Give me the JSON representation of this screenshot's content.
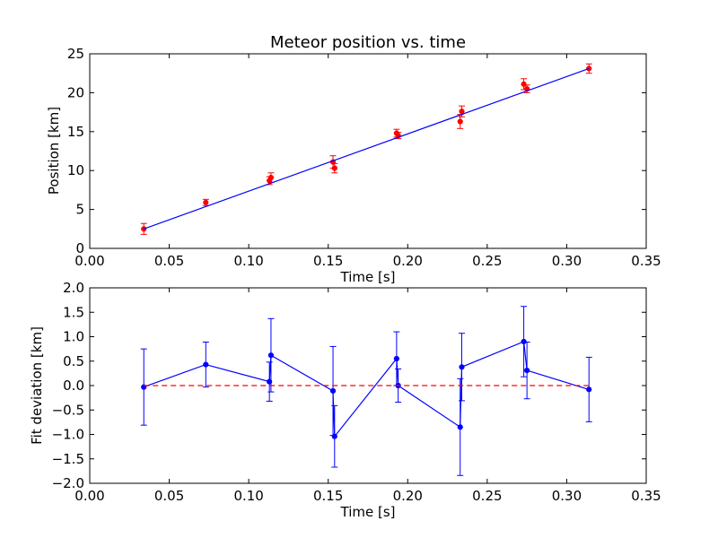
{
  "chart_data": [
    {
      "type": "scatter",
      "title": "Meteor position vs. time",
      "xlabel": "Time [s]",
      "ylabel": "Position [km]",
      "xlim": [
        0.0,
        0.35
      ],
      "ylim": [
        0,
        25
      ],
      "x_ticks": [
        "0.00",
        "0.05",
        "0.10",
        "0.15",
        "0.20",
        "0.25",
        "0.30",
        "0.35"
      ],
      "y_ticks": [
        "0",
        "5",
        "10",
        "15",
        "20",
        "25"
      ],
      "grid": false,
      "series": [
        {
          "kind": "errorbar-points",
          "color": "#ff0000",
          "points": [
            {
              "x": 0.034,
              "y": 2.5,
              "err": 0.7
            },
            {
              "x": 0.073,
              "y": 5.9,
              "err": 0.4
            },
            {
              "x": 0.113,
              "y": 8.7,
              "err": 0.5
            },
            {
              "x": 0.114,
              "y": 9.1,
              "err": 0.6
            },
            {
              "x": 0.153,
              "y": 11.1,
              "err": 0.8
            },
            {
              "x": 0.154,
              "y": 10.3,
              "err": 0.6
            },
            {
              "x": 0.193,
              "y": 14.8,
              "err": 0.5
            },
            {
              "x": 0.194,
              "y": 14.5,
              "err": 0.4
            },
            {
              "x": 0.233,
              "y": 16.3,
              "err": 0.9
            },
            {
              "x": 0.234,
              "y": 17.6,
              "err": 0.7
            },
            {
              "x": 0.273,
              "y": 21.1,
              "err": 0.7
            },
            {
              "x": 0.275,
              "y": 20.5,
              "err": 0.5
            },
            {
              "x": 0.314,
              "y": 23.1,
              "err": 0.6
            }
          ]
        },
        {
          "kind": "fit-line",
          "color": "#0000ff",
          "x": [
            0.034,
            0.314
          ],
          "y": [
            2.5,
            23.1
          ]
        }
      ]
    },
    {
      "type": "line",
      "title": "",
      "xlabel": "Time [s]",
      "ylabel": "Fit deviation [km]",
      "xlim": [
        0.0,
        0.35
      ],
      "ylim": [
        -2.0,
        2.0
      ],
      "x_ticks": [
        "0.00",
        "0.05",
        "0.10",
        "0.15",
        "0.20",
        "0.25",
        "0.30",
        "0.35"
      ],
      "y_ticks": [
        "−2.0",
        "−1.5",
        "−1.0",
        "−0.5",
        "0.0",
        "0.5",
        "1.0",
        "1.5",
        "2.0"
      ],
      "grid": false,
      "series": [
        {
          "kind": "errorbar-line",
          "color": "#0000ff",
          "points": [
            {
              "x": 0.034,
              "y": -0.03,
              "err": 0.78
            },
            {
              "x": 0.073,
              "y": 0.43,
              "err": 0.46
            },
            {
              "x": 0.113,
              "y": 0.08,
              "err": 0.4
            },
            {
              "x": 0.114,
              "y": 0.62,
              "err": 0.75
            },
            {
              "x": 0.153,
              "y": -0.11,
              "err": 0.91
            },
            {
              "x": 0.154,
              "y": -1.04,
              "err": 0.63
            },
            {
              "x": 0.193,
              "y": 0.55,
              "err": 0.55
            },
            {
              "x": 0.194,
              "y": 0.0,
              "err": 0.34
            },
            {
              "x": 0.233,
              "y": -0.85,
              "err": 0.99
            },
            {
              "x": 0.234,
              "y": 0.38,
              "err": 0.69
            },
            {
              "x": 0.273,
              "y": 0.9,
              "err": 0.72
            },
            {
              "x": 0.275,
              "y": 0.31,
              "err": 0.58
            },
            {
              "x": 0.314,
              "y": -0.08,
              "err": 0.66
            }
          ]
        },
        {
          "kind": "reference-line",
          "color": "#ff0000",
          "dashed": true,
          "x": [
            0.034,
            0.314
          ],
          "y": [
            0.0,
            0.0
          ]
        }
      ]
    }
  ]
}
